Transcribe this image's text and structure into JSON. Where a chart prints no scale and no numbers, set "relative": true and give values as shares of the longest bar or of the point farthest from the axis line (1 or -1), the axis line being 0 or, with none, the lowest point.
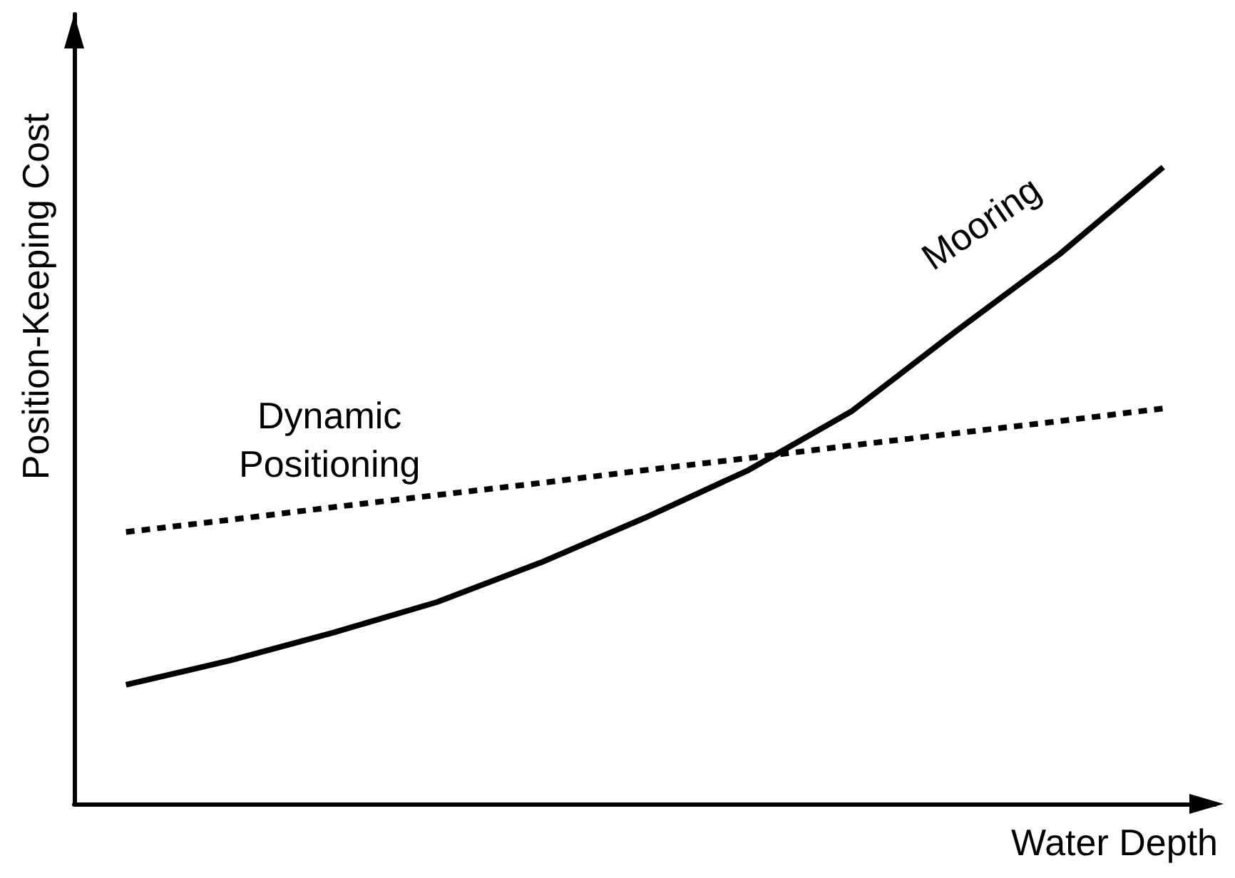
{
  "chart_data": {
    "type": "line",
    "relative": true,
    "xlabel": "Water Depth",
    "ylabel": "Position-Keeping Cost",
    "categories": [
      null,
      null,
      null,
      null,
      null,
      null,
      null,
      null,
      null,
      null,
      null
    ],
    "marker": "none",
    "grid": false,
    "legend": false,
    "series": [
      {
        "name": "Mooring",
        "color": "#000000",
        "line_style": "solid",
        "values": [
          0.187,
          0.225,
          0.269,
          0.317,
          0.379,
          0.449,
          0.524,
          0.617,
          0.742,
          0.863,
          1
        ]
      },
      {
        "name": "Dynamic Positioning",
        "color": "#000000",
        "line_style": "dashed",
        "values": [
          0.427,
          0.446,
          0.466,
          0.485,
          0.504,
          0.524,
          0.543,
          0.563,
          0.582,
          0.601,
          0.621
        ]
      }
    ]
  }
}
